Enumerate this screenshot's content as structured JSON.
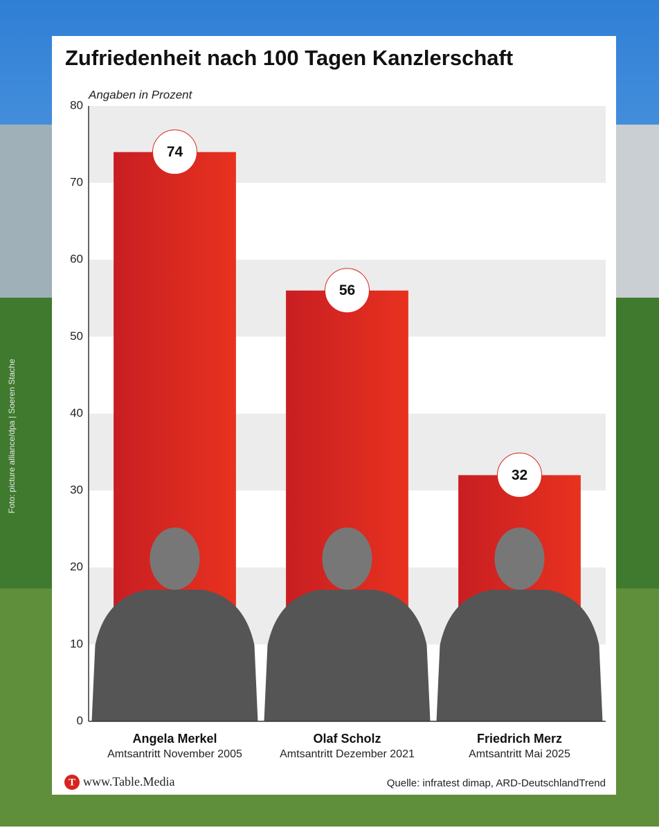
{
  "chart_data": {
    "type": "bar",
    "title": "Zufriedenheit nach 100 Tagen Kanzlerschaft",
    "subtitle": "Angaben in Prozent",
    "categories": [
      "Angela Merkel",
      "Olaf Scholz",
      "Friedrich Merz"
    ],
    "category_subtitles": [
      "Amtsantritt November 2005",
      "Amtsantritt Dezember 2021",
      "Amtsantritt Mai 2025"
    ],
    "values": [
      74,
      56,
      32
    ],
    "color": "#d8231e",
    "ylim": [
      0,
      80
    ],
    "yticks": [
      0,
      10,
      20,
      30,
      40,
      50,
      60,
      70,
      80
    ],
    "grid": true,
    "source": "Quelle: infratest dimap, ARD-DeutschlandTrend",
    "website": "www.Table.Media",
    "photo_credit": "Foto: picture alliance/dpa | Soeren Stache"
  }
}
